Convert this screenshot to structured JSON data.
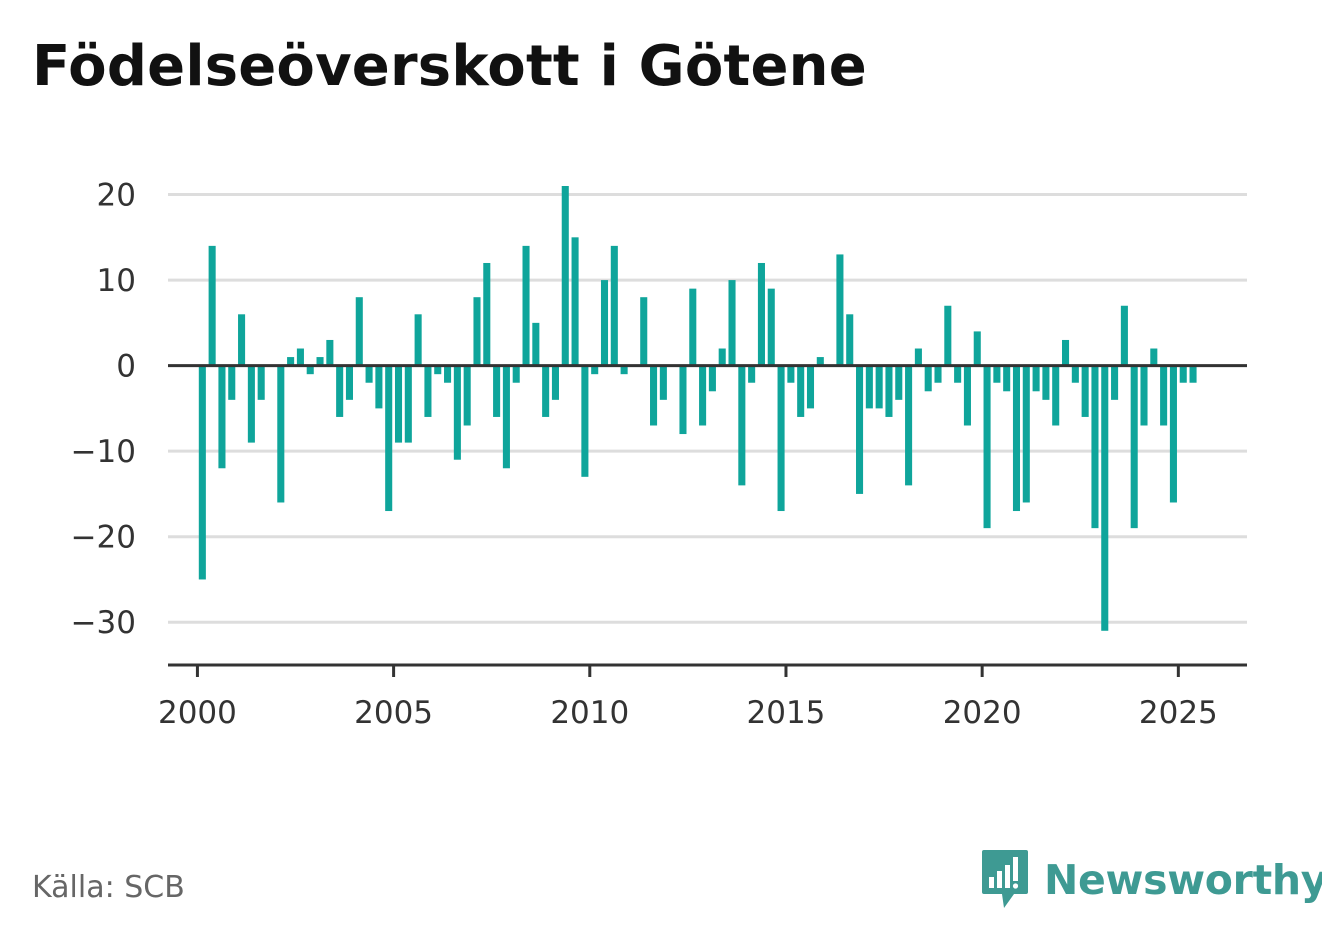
{
  "title": "Födelseöverskott i Götene",
  "source": "Källa: SCB",
  "brand": {
    "name": "Newsworthy",
    "icon": "bar-chart-logo-icon"
  },
  "colors": {
    "bar": "#0fa59b",
    "grid": "#dddddd",
    "axis": "#333333",
    "brand": "#3e9a93"
  },
  "chart_data": {
    "type": "bar",
    "title": "Födelseöverskott i Götene",
    "xlabel": "",
    "ylabel": "",
    "ylim": [
      -35,
      21
    ],
    "xlim": [
      1999.25,
      2026.75
    ],
    "yticks": [
      20,
      10,
      0,
      -10,
      -20,
      -30
    ],
    "ytick_labels": [
      "20",
      "10",
      "0",
      "−10",
      "−20",
      "−30"
    ],
    "xticks": [
      2000,
      2005,
      2010,
      2015,
      2020,
      2025
    ],
    "grid": true,
    "legend": "none",
    "frequency": "quarterly",
    "start": "2000 Q1",
    "values": [
      -25,
      14,
      -12,
      -4,
      6,
      -9,
      -4,
      0,
      -16,
      1,
      2,
      -1,
      1,
      3,
      -6,
      -4,
      8,
      -2,
      -5,
      -17,
      -9,
      -9,
      6,
      -6,
      -1,
      -2,
      -11,
      -7,
      8,
      12,
      -6,
      -12,
      -2,
      14,
      5,
      -6,
      -4,
      21,
      15,
      -13,
      -1,
      10,
      14,
      -1,
      0,
      8,
      -7,
      -4,
      0,
      -8,
      9,
      -7,
      -3,
      2,
      10,
      -14,
      -2,
      12,
      9,
      -17,
      -2,
      -6,
      -5,
      1,
      0,
      13,
      6,
      -15,
      -5,
      -5,
      -6,
      -4,
      -14,
      2,
      -3,
      -2,
      7,
      -2,
      -7,
      4,
      -19,
      -2,
      -3,
      -17,
      -16,
      -3,
      -4,
      -7,
      3,
      -2,
      -6,
      -19,
      -31,
      -4,
      7,
      -19,
      -7,
      2,
      -7,
      -16,
      -2,
      -2
    ]
  }
}
